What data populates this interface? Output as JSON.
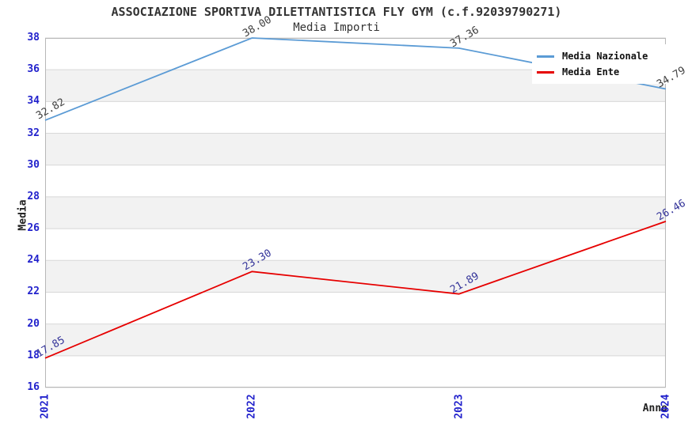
{
  "chart_data": {
    "type": "line",
    "title": "ASSOCIAZIONE SPORTIVA DILETTANTISTICA FLY GYM (c.f.92039790271)",
    "subtitle": "Media Importi",
    "xlabel": "Anno",
    "ylabel": "Media",
    "x": [
      "2021",
      "2022",
      "2023",
      "2024"
    ],
    "series": [
      {
        "name": "Media Nazionale",
        "color": "#5b9bd5",
        "label_color": "#404040",
        "values": [
          32.82,
          38.0,
          37.36,
          34.79
        ]
      },
      {
        "name": "Media Ente",
        "color": "#e60000",
        "label_color": "#333399",
        "values": [
          17.85,
          23.3,
          21.89,
          26.46
        ]
      }
    ],
    "ylim": [
      16,
      38
    ],
    "ytick_step": 2,
    "grid": true,
    "legend_position": "top-right",
    "band_colors": [
      "#ffffff",
      "#f2f2f2"
    ],
    "value_decimals": 2
  },
  "styles": {
    "tick_color": "#2222cc",
    "grid_color": "#d8d8d8",
    "frame_color": "#b8b8b8",
    "title_color": "#333333",
    "subtitle_color": "#333333",
    "axis_label_color": "#222222",
    "legend_text_color": "#111111"
  }
}
